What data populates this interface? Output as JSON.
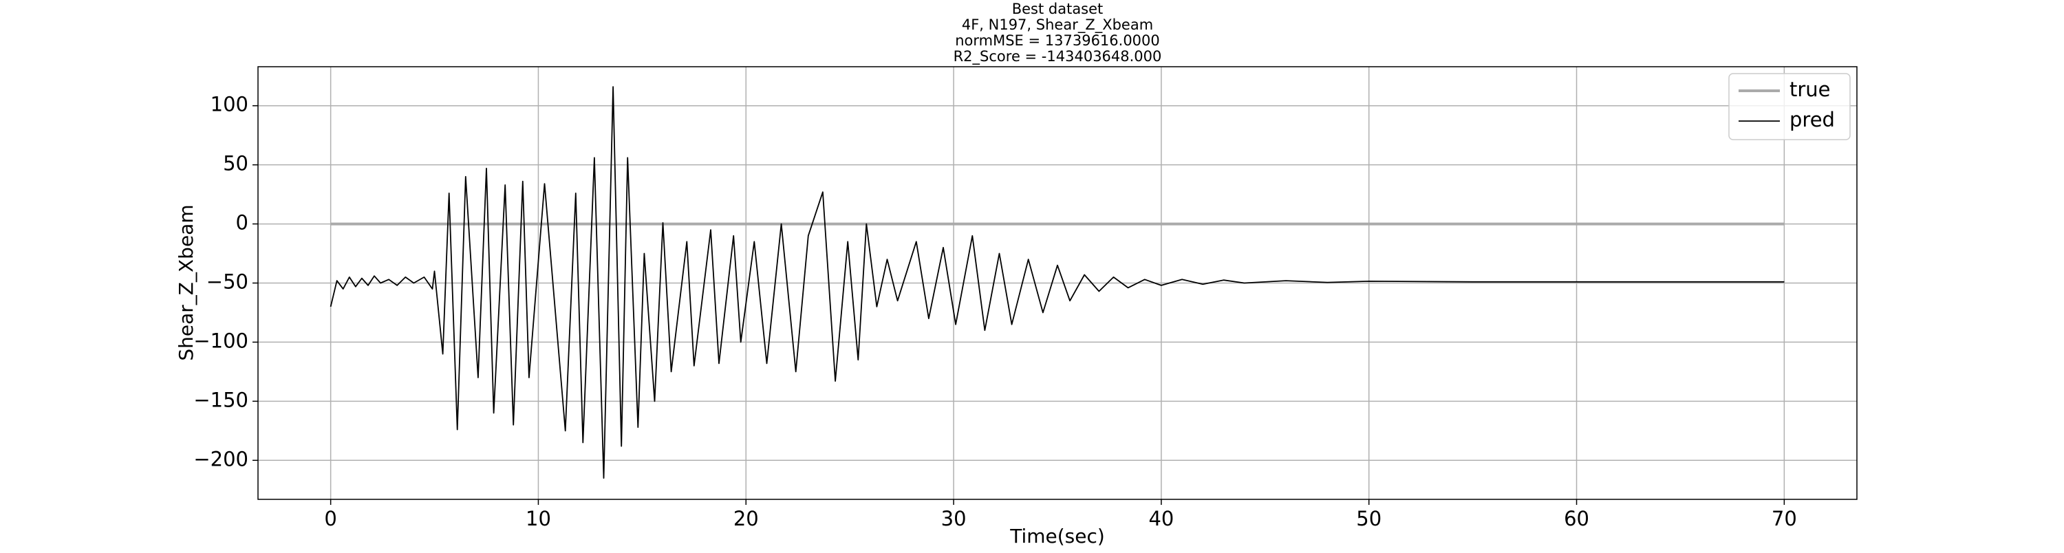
{
  "chart_data": {
    "type": "line",
    "title": [
      "Best dataset",
      "4F, N197, Shear_Z_Xbeam",
      "normMSE = 13739616.0000",
      "R2_Score = -143403648.000"
    ],
    "xlabel": "Time(sec)",
    "ylabel": "Shear_Z_Xbeam",
    "xlim": [
      -3.5,
      73.5
    ],
    "ylim": [
      -233,
      133
    ],
    "xticks": [
      0,
      10,
      20,
      30,
      40,
      50,
      60,
      70
    ],
    "yticks": [
      {
        "value": -200,
        "label": "−200"
      },
      {
        "value": -150,
        "label": "−150"
      },
      {
        "value": -100,
        "label": "−100"
      },
      {
        "value": -50,
        "label": "−50"
      },
      0,
      50,
      100
    ],
    "grid": true,
    "legend": "upper right",
    "series": [
      {
        "name": "true",
        "color": "#aaaaaa",
        "x": [
          0,
          70
        ],
        "values": [
          0,
          0
        ]
      },
      {
        "name": "pred",
        "color": "#000000",
        "x": [
          0,
          0.3,
          0.6,
          0.9,
          1.2,
          1.5,
          1.8,
          2.1,
          2.4,
          2.8,
          3.2,
          3.6,
          4,
          4.5,
          4.9,
          5.0,
          5.4,
          5.7,
          6.1,
          6.5,
          7.1,
          7.5,
          7.85,
          8.4,
          8.8,
          9.25,
          9.55,
          10.3,
          11.3,
          11.8,
          12.15,
          12.7,
          13.15,
          13.6,
          14.0,
          14.3,
          14.8,
          15.1,
          15.6,
          16.0,
          16.4,
          17.15,
          17.5,
          18.3,
          18.7,
          19.4,
          19.75,
          20.4,
          21.0,
          21.7,
          22.4,
          23.0,
          23.7,
          24.3,
          24.9,
          25.4,
          25.8,
          26.3,
          26.8,
          27.3,
          28.2,
          28.8,
          29.5,
          30.1,
          30.9,
          31.5,
          32.2,
          32.8,
          33.6,
          34.3,
          35.0,
          35.6,
          36.3,
          37,
          37.7,
          38.4,
          39.2,
          40,
          41,
          42,
          43,
          44,
          46,
          48,
          50,
          55,
          60,
          70
        ],
        "values": [
          -70,
          -48,
          -55,
          -45,
          -53,
          -46,
          -52,
          -44,
          -50,
          -47,
          -52,
          -45,
          -50,
          -45,
          -55,
          -40,
          -110,
          26,
          -174,
          40,
          -130,
          47,
          -160,
          33,
          -170,
          36,
          -130,
          34,
          -175,
          26,
          -185,
          56,
          -215,
          116,
          -188,
          56,
          -172,
          -25,
          -150,
          1,
          -125,
          -15,
          -120,
          -5,
          -118,
          -10,
          -100,
          -15,
          -118,
          0,
          -125,
          -10,
          27,
          -133,
          -15,
          -115,
          0,
          -70,
          -30,
          -65,
          -15,
          -80,
          -20,
          -85,
          -10,
          -90,
          -25,
          -85,
          -30,
          -75,
          -35,
          -65,
          -43,
          -57,
          -45,
          -54,
          -47,
          -52,
          -47,
          -51,
          -47.5,
          -50,
          -48,
          -49.5,
          -48.5,
          -49,
          -49,
          -49
        ]
      }
    ]
  }
}
